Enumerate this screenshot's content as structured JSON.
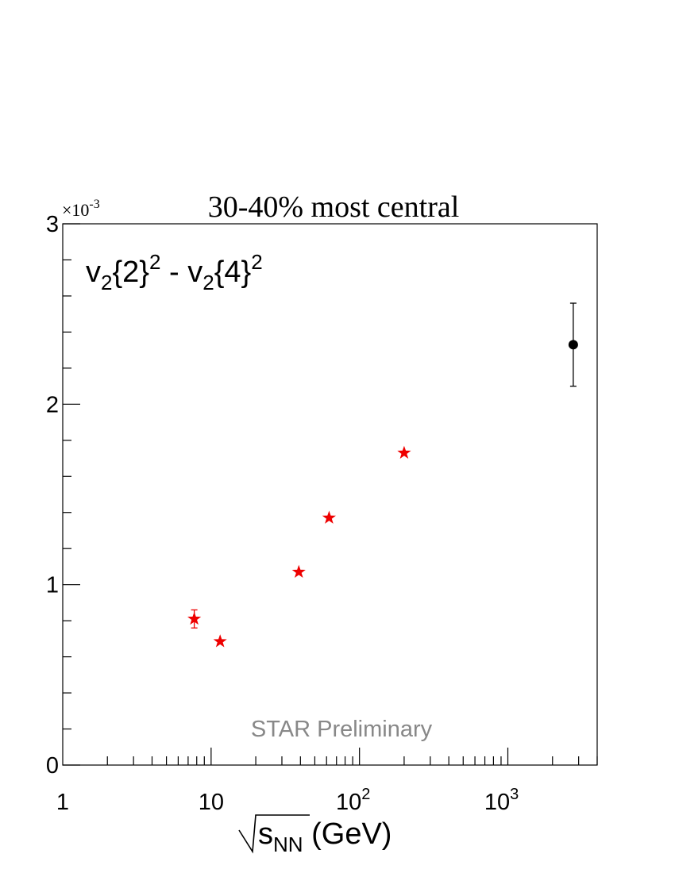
{
  "chart_data": {
    "type": "scatter",
    "title": "30-40% most central",
    "annotation": {
      "base1": "v",
      "sub1": "2",
      "brace1": "{2}",
      "sup1": "2",
      "minus": " - ",
      "base2": "v",
      "sub2": "2",
      "brace2": "{4}",
      "sup2": "2"
    },
    "watermark": "STAR Preliminary",
    "exponent_base": "×10",
    "exponent_power": "-3",
    "xlabel": {
      "base": "s",
      "sub": "NN",
      "unit": " (GeV)"
    },
    "xscale": "log",
    "xlim": [
      1,
      4000
    ],
    "ylim": [
      0,
      0.003
    ],
    "x_ticks": [
      {
        "value": 1,
        "label": "1",
        "power": ""
      },
      {
        "value": 10,
        "label": "10",
        "power": ""
      },
      {
        "value": 100,
        "label": "10",
        "power": "2"
      },
      {
        "value": 1000,
        "label": "10",
        "power": "3"
      }
    ],
    "y_ticks": [
      {
        "value": 0,
        "label": "0"
      },
      {
        "value": 0.001,
        "label": "1"
      },
      {
        "value": 0.002,
        "label": "2"
      },
      {
        "value": 0.003,
        "label": "3"
      }
    ],
    "series": [
      {
        "marker": "star",
        "color": "#ee0000",
        "points": [
          {
            "x": 7.7,
            "y": 0.00081,
            "yerr": 5e-05
          },
          {
            "x": 11.5,
            "y": 0.000685,
            "yerr": 0
          },
          {
            "x": 39,
            "y": 0.00107,
            "yerr": 0
          },
          {
            "x": 62.4,
            "y": 0.00137,
            "yerr": 0
          },
          {
            "x": 200,
            "y": 0.00173,
            "yerr": 0
          }
        ]
      },
      {
        "marker": "circle",
        "color": "#000000",
        "points": [
          {
            "x": 2760,
            "y": 0.00233,
            "yerr": 0.00023
          }
        ]
      }
    ],
    "grid": false,
    "legend": "none"
  }
}
